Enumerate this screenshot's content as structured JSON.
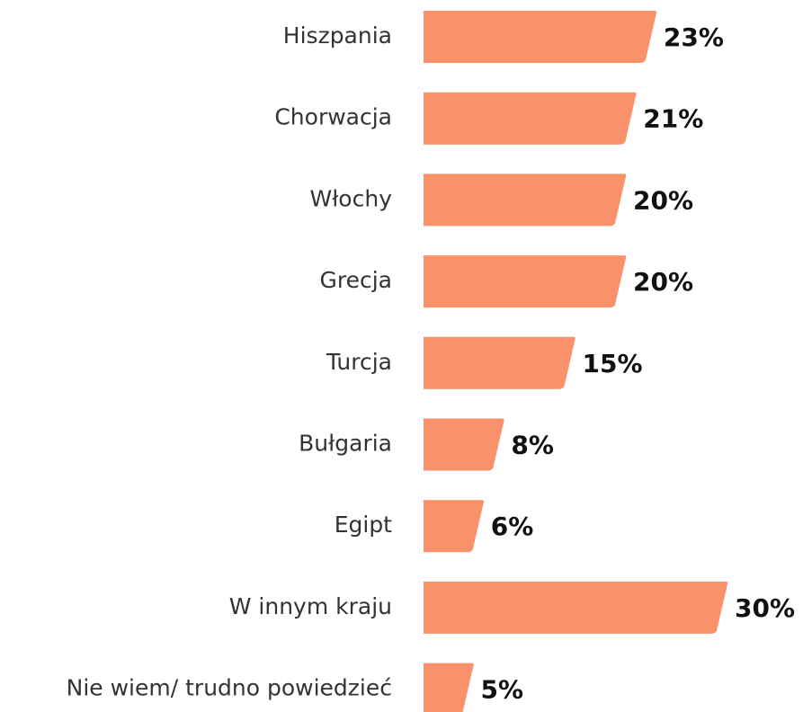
{
  "chart_data": {
    "type": "bar",
    "orientation": "horizontal",
    "color": "#f9926b",
    "categories": [
      "Hiszpania",
      "Chorwacja",
      "Włochy",
      "Grecja",
      "Turcja",
      "Bułgaria",
      "Egipt",
      "W innym kraju",
      "Nie wiem/ trudno powiedzieć"
    ],
    "values": [
      23,
      21,
      20,
      20,
      15,
      8,
      6,
      30,
      5
    ],
    "value_labels": [
      "23%",
      "21%",
      "20%",
      "20%",
      "15%",
      "8%",
      "6%",
      "30%",
      "5%"
    ]
  }
}
